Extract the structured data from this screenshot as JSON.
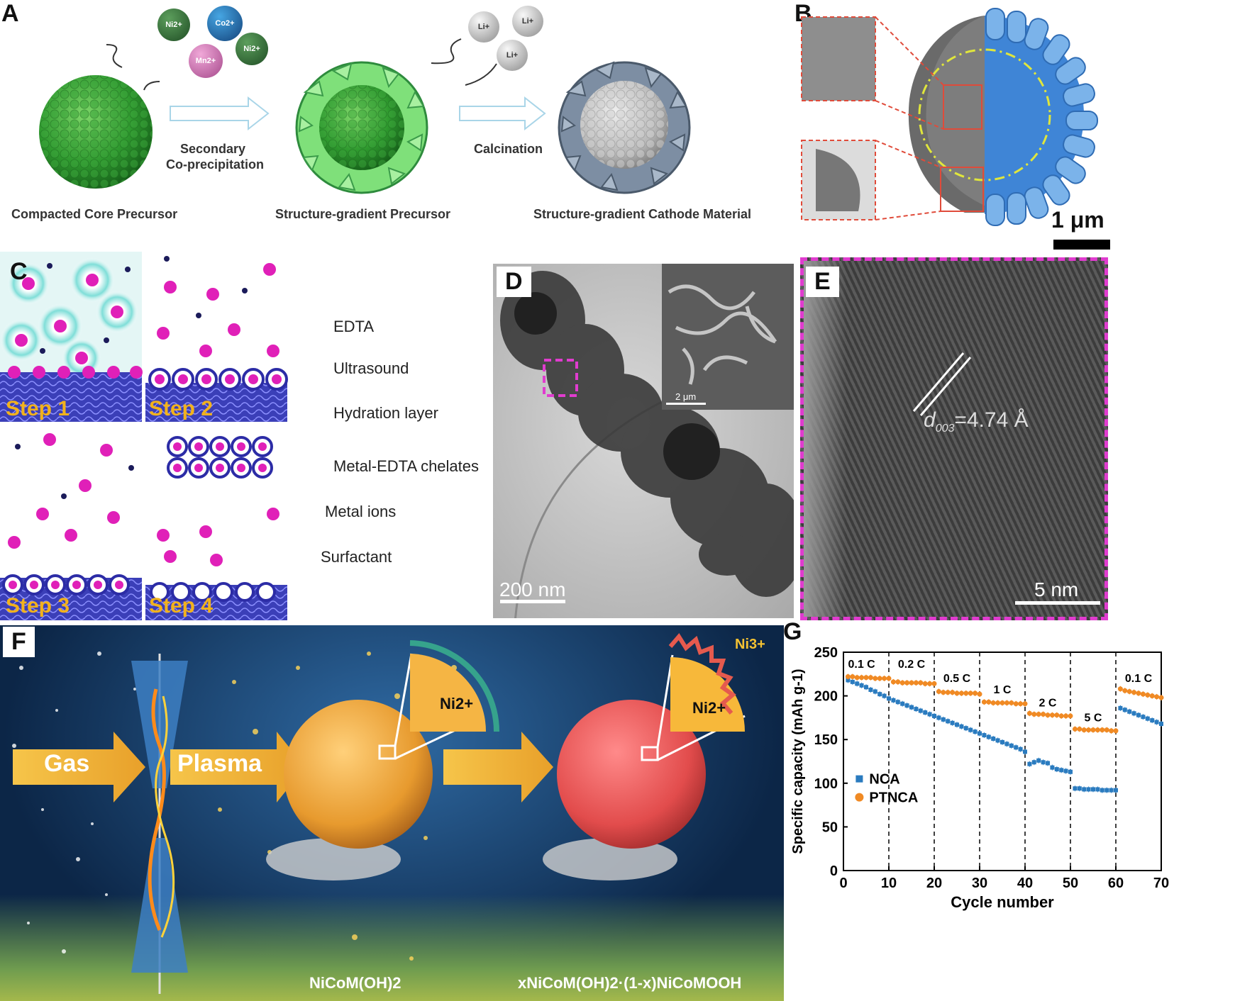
{
  "panels": {
    "A": {
      "label": "A",
      "ions_top": [
        "Ni2+",
        "Co2+",
        "Mn2+",
        "Ni2+"
      ],
      "ions_li": [
        "Li+",
        "Li+",
        "Li+"
      ],
      "arrow1": [
        "Secondary",
        "Co-precipitation"
      ],
      "arrow2": "Calcination",
      "captions": [
        "Compacted Core Precursor",
        "Structure-gradient Precursor",
        "Structure-gradient Cathode Material"
      ]
    },
    "B": {
      "label": "B",
      "scale": "1 μm"
    },
    "C": {
      "label": "C",
      "steps": [
        "Step 1",
        "Step 2",
        "Step 3",
        "Step 4"
      ],
      "legend": [
        "EDTA",
        "Ultrasound",
        "Hydration layer",
        "Metal-EDTA chelates",
        "Metal ions",
        "Surfactant"
      ]
    },
    "D": {
      "label": "D",
      "scale": "200 nm",
      "inset_scale": "2 μm"
    },
    "E": {
      "label": "E",
      "d_spacing_symbol": "d",
      "d_spacing_sub": "003",
      "d_spacing_value": "=4.74 Å",
      "scale": "5 nm"
    },
    "F": {
      "label": "F",
      "gas": "Gas",
      "plasma": "Plasma",
      "ni2": "Ni2+",
      "ni3": "Ni3+",
      "product1": "NiCoM(OH)2",
      "product2": "xNiCoM(OH)2·(1-x)NiCoMOOH"
    },
    "G": {
      "label": "G"
    }
  },
  "chart_data": {
    "type": "scatter",
    "xlabel": "Cycle number",
    "ylabel": "Specific capacity (mAh g-1)",
    "xlim": [
      0,
      70
    ],
    "ylim": [
      0,
      250
    ],
    "xticks": [
      0,
      10,
      20,
      30,
      40,
      50,
      60,
      70
    ],
    "yticks": [
      0,
      50,
      100,
      150,
      200,
      250
    ],
    "rate_labels": [
      {
        "text": "0.1 C",
        "x": 4,
        "y": 232
      },
      {
        "text": "0.2 C",
        "x": 15,
        "y": 232
      },
      {
        "text": "0.5 C",
        "x": 25,
        "y": 216
      },
      {
        "text": "1 C",
        "x": 35,
        "y": 203
      },
      {
        "text": "2 C",
        "x": 45,
        "y": 188
      },
      {
        "text": "5 C",
        "x": 55,
        "y": 171
      },
      {
        "text": "0.1 C",
        "x": 65,
        "y": 216
      }
    ],
    "dividers": [
      10,
      20,
      30,
      40,
      50,
      60
    ],
    "legend_position": "lower-left",
    "series": [
      {
        "name": "NCA",
        "color": "#2a7bbf",
        "x": [
          1,
          2,
          3,
          4,
          5,
          6,
          7,
          8,
          9,
          10,
          11,
          12,
          13,
          14,
          15,
          16,
          17,
          18,
          19,
          20,
          21,
          22,
          23,
          24,
          25,
          26,
          27,
          28,
          29,
          30,
          31,
          32,
          33,
          34,
          35,
          36,
          37,
          38,
          39,
          40,
          41,
          42,
          43,
          44,
          45,
          46,
          47,
          48,
          49,
          50,
          51,
          52,
          53,
          54,
          55,
          56,
          57,
          58,
          59,
          60,
          61,
          62,
          63,
          64,
          65,
          66,
          67,
          68,
          69,
          70
        ],
        "y": [
          218,
          216,
          214,
          212,
          210,
          207,
          205,
          202,
          200,
          197,
          195,
          193,
          191,
          189,
          187,
          185,
          183,
          181,
          179,
          177,
          175,
          173,
          171,
          169,
          167,
          165,
          163,
          161,
          159,
          157,
          155,
          153,
          151,
          149,
          147,
          145,
          143,
          141,
          139,
          136,
          122,
          124,
          126,
          124,
          123,
          118,
          116,
          115,
          114,
          113,
          94,
          94,
          93,
          93,
          93,
          93,
          92,
          92,
          92,
          92,
          186,
          184,
          182,
          180,
          178,
          176,
          174,
          172,
          170,
          168
        ]
      },
      {
        "name": "PTNCA",
        "color": "#f08a24",
        "x": [
          1,
          2,
          3,
          4,
          5,
          6,
          7,
          8,
          9,
          10,
          11,
          12,
          13,
          14,
          15,
          16,
          17,
          18,
          19,
          20,
          21,
          22,
          23,
          24,
          25,
          26,
          27,
          28,
          29,
          30,
          31,
          32,
          33,
          34,
          35,
          36,
          37,
          38,
          39,
          40,
          41,
          42,
          43,
          44,
          45,
          46,
          47,
          48,
          49,
          50,
          51,
          52,
          53,
          54,
          55,
          56,
          57,
          58,
          59,
          60,
          61,
          62,
          63,
          64,
          65,
          66,
          67,
          68,
          69,
          70
        ],
        "y": [
          222,
          222,
          221,
          221,
          221,
          221,
          220,
          220,
          220,
          220,
          216,
          216,
          215,
          215,
          215,
          215,
          215,
          214,
          214,
          214,
          205,
          204,
          204,
          204,
          203,
          203,
          203,
          203,
          203,
          202,
          193,
          193,
          192,
          192,
          192,
          192,
          192,
          191,
          191,
          191,
          180,
          179,
          179,
          179,
          178,
          178,
          178,
          177,
          177,
          177,
          162,
          162,
          161,
          161,
          161,
          161,
          161,
          161,
          160,
          160,
          208,
          206,
          205,
          204,
          203,
          202,
          201,
          200,
          199,
          198
        ]
      }
    ]
  }
}
